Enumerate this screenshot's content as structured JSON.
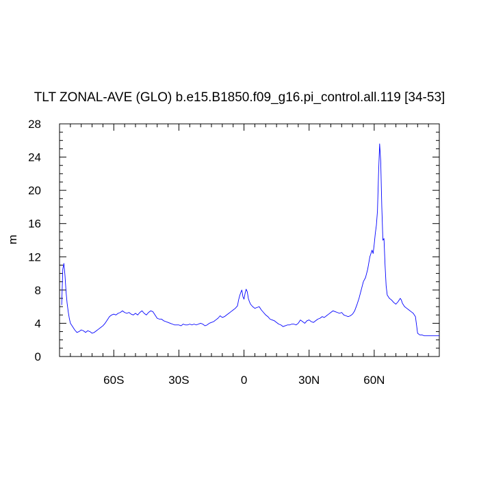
{
  "chart_data": {
    "type": "line",
    "title": "TLT ZONAL-AVE (GLO) b.e15.B1850.f09_g16.pi_control.all.119 [34-53]",
    "xlabel": "",
    "ylabel": "m",
    "xlim": [
      -85,
      90
    ],
    "ylim": [
      0,
      28
    ],
    "grid": false,
    "xticks": [
      {
        "value": -60,
        "label": "60S"
      },
      {
        "value": -30,
        "label": "30S"
      },
      {
        "value": 0,
        "label": "0"
      },
      {
        "value": 30,
        "label": "30N"
      },
      {
        "value": 60,
        "label": "60N"
      }
    ],
    "yticks": [
      {
        "value": 0,
        "label": "0"
      },
      {
        "value": 4,
        "label": "4"
      },
      {
        "value": 8,
        "label": "8"
      },
      {
        "value": 12,
        "label": "12"
      },
      {
        "value": 16,
        "label": "16"
      },
      {
        "value": 20,
        "label": "20"
      },
      {
        "value": 24,
        "label": "24"
      },
      {
        "value": 28,
        "label": "28"
      }
    ],
    "series": [
      {
        "color": "#0000ff",
        "points": [
          [
            -84.0,
            6.2
          ],
          [
            -83.5,
            10.5
          ],
          [
            -83.0,
            11.2
          ],
          [
            -82.5,
            9.8
          ],
          [
            -82.0,
            7.8
          ],
          [
            -81.5,
            6.4
          ],
          [
            -81.0,
            5.4
          ],
          [
            -80.5,
            4.6
          ],
          [
            -80.0,
            4.0
          ],
          [
            -79.0,
            3.6
          ],
          [
            -78.0,
            3.2
          ],
          [
            -77.0,
            2.9
          ],
          [
            -76.0,
            3.0
          ],
          [
            -75.0,
            3.2
          ],
          [
            -74.0,
            3.1
          ],
          [
            -73.0,
            2.9
          ],
          [
            -72.0,
            3.1
          ],
          [
            -71.0,
            3.0
          ],
          [
            -70.0,
            2.8
          ],
          [
            -69.0,
            2.9
          ],
          [
            -68.0,
            3.1
          ],
          [
            -67.0,
            3.3
          ],
          [
            -66.0,
            3.5
          ],
          [
            -65.0,
            3.7
          ],
          [
            -64.0,
            4.0
          ],
          [
            -63.0,
            4.4
          ],
          [
            -62.0,
            4.8
          ],
          [
            -61.0,
            5.0
          ],
          [
            -60.0,
            5.1
          ],
          [
            -59.0,
            5.0
          ],
          [
            -58.0,
            5.2
          ],
          [
            -57.0,
            5.3
          ],
          [
            -56.0,
            5.5
          ],
          [
            -55.0,
            5.3
          ],
          [
            -54.0,
            5.2
          ],
          [
            -53.0,
            5.3
          ],
          [
            -52.0,
            5.1
          ],
          [
            -51.0,
            5.0
          ],
          [
            -50.0,
            5.2
          ],
          [
            -49.0,
            5.0
          ],
          [
            -48.0,
            5.3
          ],
          [
            -47.0,
            5.5
          ],
          [
            -46.0,
            5.2
          ],
          [
            -45.0,
            5.0
          ],
          [
            -44.0,
            5.3
          ],
          [
            -43.0,
            5.5
          ],
          [
            -42.0,
            5.4
          ],
          [
            -41.0,
            5.0
          ],
          [
            -40.0,
            4.6
          ],
          [
            -39.0,
            4.5
          ],
          [
            -38.0,
            4.5
          ],
          [
            -37.0,
            4.3
          ],
          [
            -36.0,
            4.2
          ],
          [
            -35.0,
            4.1
          ],
          [
            -34.0,
            4.0
          ],
          [
            -33.0,
            3.9
          ],
          [
            -32.0,
            3.8
          ],
          [
            -31.0,
            3.8
          ],
          [
            -30.0,
            3.8
          ],
          [
            -29.0,
            3.7
          ],
          [
            -28.0,
            3.9
          ],
          [
            -27.0,
            3.8
          ],
          [
            -26.0,
            3.8
          ],
          [
            -25.0,
            3.9
          ],
          [
            -24.0,
            3.8
          ],
          [
            -23.0,
            3.9
          ],
          [
            -22.0,
            3.8
          ],
          [
            -21.0,
            3.9
          ],
          [
            -20.0,
            4.0
          ],
          [
            -19.0,
            3.9
          ],
          [
            -18.0,
            3.7
          ],
          [
            -17.0,
            3.8
          ],
          [
            -16.0,
            4.0
          ],
          [
            -15.0,
            4.1
          ],
          [
            -14.0,
            4.2
          ],
          [
            -13.0,
            4.4
          ],
          [
            -12.0,
            4.6
          ],
          [
            -11.0,
            4.9
          ],
          [
            -10.0,
            4.7
          ],
          [
            -9.0,
            4.8
          ],
          [
            -8.0,
            5.0
          ],
          [
            -7.0,
            5.2
          ],
          [
            -6.0,
            5.4
          ],
          [
            -5.0,
            5.6
          ],
          [
            -4.0,
            5.8
          ],
          [
            -3.0,
            6.1
          ],
          [
            -2.5,
            6.8
          ],
          [
            -2.0,
            7.3
          ],
          [
            -1.5,
            7.7
          ],
          [
            -1.0,
            8.0
          ],
          [
            -0.5,
            7.2
          ],
          [
            0.0,
            6.9
          ],
          [
            0.5,
            7.6
          ],
          [
            1.0,
            8.1
          ],
          [
            1.5,
            7.8
          ],
          [
            2.0,
            7.0
          ],
          [
            2.5,
            6.6
          ],
          [
            3.0,
            6.3
          ],
          [
            4.0,
            6.0
          ],
          [
            5.0,
            5.8
          ],
          [
            6.0,
            5.9
          ],
          [
            7.0,
            6.0
          ],
          [
            8.0,
            5.6
          ],
          [
            9.0,
            5.3
          ],
          [
            10.0,
            5.0
          ],
          [
            11.0,
            4.8
          ],
          [
            12.0,
            4.5
          ],
          [
            13.0,
            4.4
          ],
          [
            14.0,
            4.3
          ],
          [
            15.0,
            4.1
          ],
          [
            16.0,
            3.9
          ],
          [
            17.0,
            3.8
          ],
          [
            18.0,
            3.6
          ],
          [
            19.0,
            3.7
          ],
          [
            20.0,
            3.8
          ],
          [
            21.0,
            3.8
          ],
          [
            22.0,
            3.9
          ],
          [
            23.0,
            3.9
          ],
          [
            24.0,
            3.8
          ],
          [
            25.0,
            4.0
          ],
          [
            26.0,
            4.4
          ],
          [
            27.0,
            4.2
          ],
          [
            28.0,
            4.0
          ],
          [
            29.0,
            4.3
          ],
          [
            30.0,
            4.4
          ],
          [
            31.0,
            4.2
          ],
          [
            32.0,
            4.1
          ],
          [
            33.0,
            4.3
          ],
          [
            34.0,
            4.5
          ],
          [
            35.0,
            4.6
          ],
          [
            36.0,
            4.8
          ],
          [
            37.0,
            4.7
          ],
          [
            38.0,
            4.9
          ],
          [
            39.0,
            5.1
          ],
          [
            40.0,
            5.3
          ],
          [
            41.0,
            5.5
          ],
          [
            42.0,
            5.4
          ],
          [
            43.0,
            5.3
          ],
          [
            44.0,
            5.2
          ],
          [
            45.0,
            5.3
          ],
          [
            46.0,
            5.0
          ],
          [
            47.0,
            4.9
          ],
          [
            48.0,
            4.8
          ],
          [
            49.0,
            4.9
          ],
          [
            50.0,
            5.1
          ],
          [
            51.0,
            5.5
          ],
          [
            52.0,
            6.2
          ],
          [
            53.0,
            7.0
          ],
          [
            54.0,
            8.0
          ],
          [
            55.0,
            9.0
          ],
          [
            56.0,
            9.5
          ],
          [
            57.0,
            10.5
          ],
          [
            58.0,
            12.0
          ],
          [
            59.0,
            12.8
          ],
          [
            59.5,
            12.4
          ],
          [
            60.0,
            13.5
          ],
          [
            60.5,
            14.8
          ],
          [
            61.0,
            15.8
          ],
          [
            61.5,
            17.5
          ],
          [
            62.0,
            22.0
          ],
          [
            62.5,
            25.6
          ],
          [
            63.0,
            23.5
          ],
          [
            63.5,
            18.0
          ],
          [
            64.0,
            14.0
          ],
          [
            64.5,
            14.2
          ],
          [
            65.0,
            11.0
          ],
          [
            65.5,
            8.5
          ],
          [
            66.0,
            7.4
          ],
          [
            67.0,
            7.0
          ],
          [
            68.0,
            6.8
          ],
          [
            69.0,
            6.5
          ],
          [
            70.0,
            6.3
          ],
          [
            71.0,
            6.6
          ],
          [
            72.0,
            7.0
          ],
          [
            72.5,
            6.8
          ],
          [
            73.0,
            6.4
          ],
          [
            74.0,
            6.0
          ],
          [
            75.0,
            5.8
          ],
          [
            76.0,
            5.6
          ],
          [
            77.0,
            5.4
          ],
          [
            78.0,
            5.2
          ],
          [
            79.0,
            4.8
          ],
          [
            79.5,
            3.8
          ],
          [
            80.0,
            2.8
          ],
          [
            81.0,
            2.6
          ],
          [
            82.0,
            2.6
          ],
          [
            83.0,
            2.5
          ],
          [
            85.0,
            2.5
          ],
          [
            87.0,
            2.5
          ],
          [
            89.0,
            2.5
          ],
          [
            90.0,
            2.5
          ]
        ]
      }
    ]
  }
}
